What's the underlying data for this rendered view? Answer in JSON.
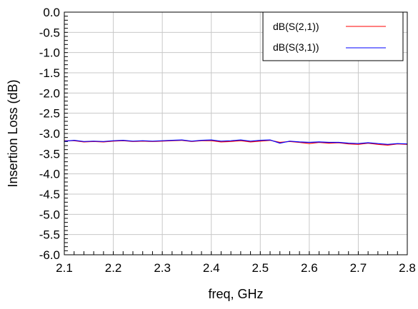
{
  "chart_data": {
    "type": "line",
    "xlabel": "freq, GHz",
    "ylabel": "Insertion Loss (dB)",
    "xlim": [
      2.1,
      2.8
    ],
    "ylim": [
      -6.0,
      0.0
    ],
    "x_ticks": [
      "2.1",
      "2.2",
      "2.3",
      "2.4",
      "2.5",
      "2.6",
      "2.7",
      "2.8"
    ],
    "y_ticks": [
      "0.0",
      "-0.5",
      "-1.0",
      "-1.5",
      "-2.0",
      "-2.5",
      "-3.0",
      "-3.5",
      "-4.0",
      "-4.5",
      "-5.0",
      "-5.5",
      "-6.0"
    ],
    "grid": true,
    "legend_position": "top-right",
    "x": [
      2.1,
      2.12,
      2.14,
      2.16,
      2.18,
      2.2,
      2.22,
      2.24,
      2.26,
      2.28,
      2.3,
      2.32,
      2.34,
      2.36,
      2.38,
      2.4,
      2.42,
      2.44,
      2.46,
      2.48,
      2.5,
      2.52,
      2.54,
      2.56,
      2.58,
      2.6,
      2.62,
      2.64,
      2.66,
      2.68,
      2.7,
      2.72,
      2.74,
      2.76,
      2.78,
      2.8
    ],
    "series": [
      {
        "name": "dB(S(2,1))",
        "color": "#ff0000",
        "values": [
          -3.18,
          -3.18,
          -3.21,
          -3.2,
          -3.21,
          -3.19,
          -3.18,
          -3.2,
          -3.19,
          -3.2,
          -3.19,
          -3.18,
          -3.17,
          -3.2,
          -3.18,
          -3.18,
          -3.21,
          -3.2,
          -3.18,
          -3.21,
          -3.19,
          -3.17,
          -3.22,
          -3.2,
          -3.22,
          -3.25,
          -3.22,
          -3.24,
          -3.23,
          -3.26,
          -3.27,
          -3.24,
          -3.27,
          -3.29,
          -3.26,
          -3.27
        ]
      },
      {
        "name": "dB(S(3,1))",
        "color": "#0000ff",
        "values": [
          -3.19,
          -3.17,
          -3.2,
          -3.19,
          -3.2,
          -3.18,
          -3.17,
          -3.19,
          -3.18,
          -3.19,
          -3.18,
          -3.17,
          -3.16,
          -3.19,
          -3.17,
          -3.16,
          -3.19,
          -3.18,
          -3.16,
          -3.19,
          -3.17,
          -3.16,
          -3.24,
          -3.19,
          -3.21,
          -3.22,
          -3.21,
          -3.22,
          -3.22,
          -3.24,
          -3.25,
          -3.23,
          -3.25,
          -3.27,
          -3.25,
          -3.26
        ]
      }
    ]
  }
}
